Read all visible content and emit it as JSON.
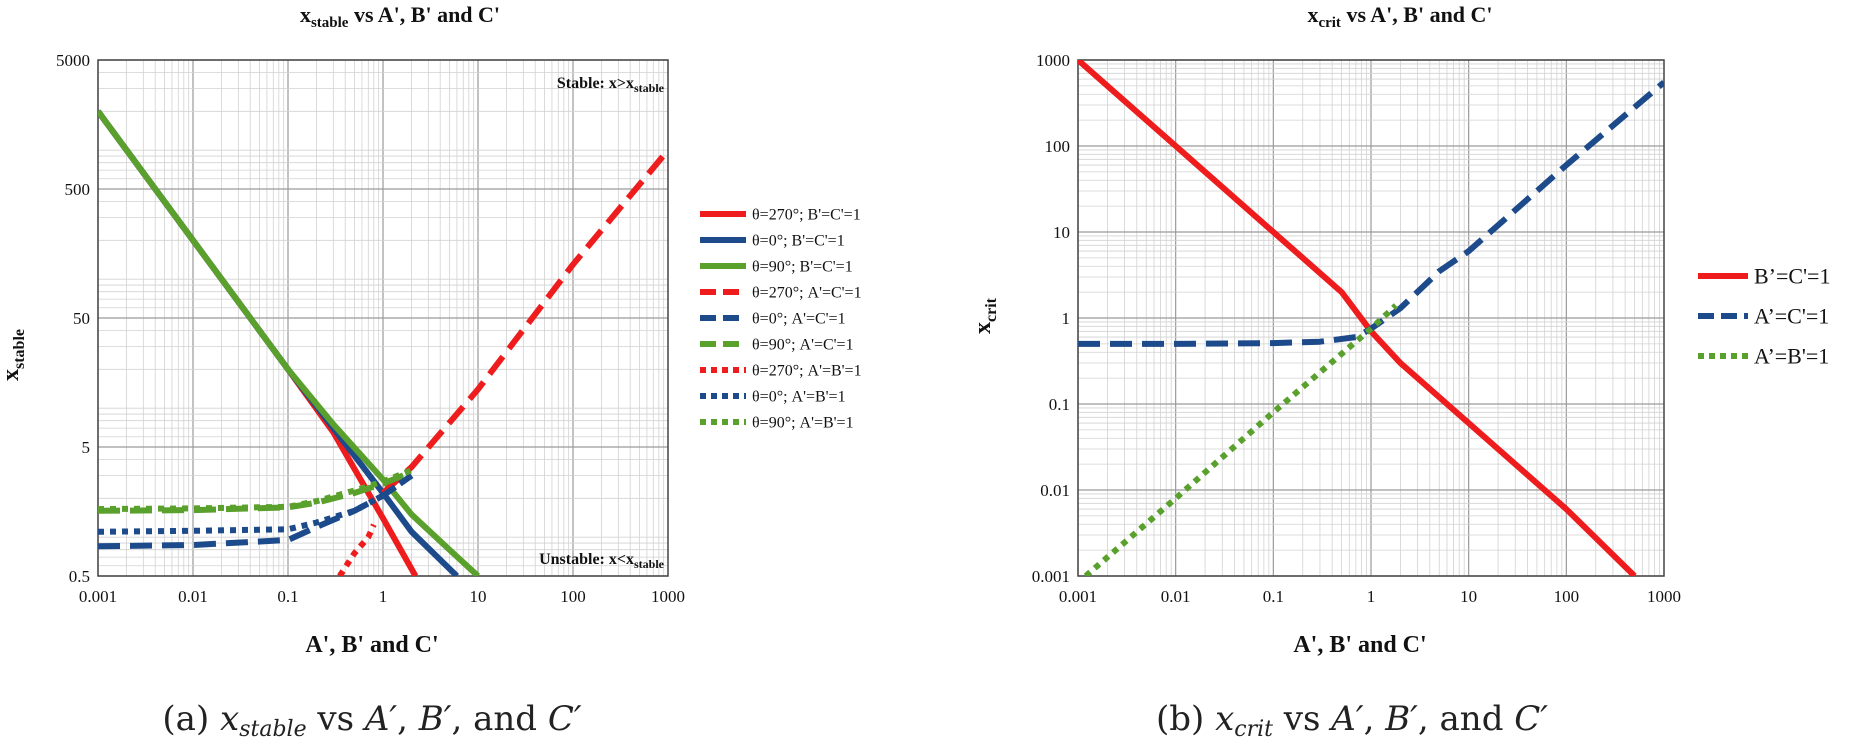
{
  "charts": [
    {
      "id": "a",
      "title_main": "x",
      "title_sub": "stable",
      "title_rest": " vs A', B' and C'",
      "ylabel_main": "x",
      "ylabel_sub": "stable",
      "xlabel": "A', B' and C'",
      "x_ticks": [
        "0.001",
        "0.01",
        "0.1",
        "1",
        "10",
        "100",
        "1000"
      ],
      "y_ticks": [
        "0.5",
        "5",
        "50",
        "500",
        "5000"
      ],
      "annotation_top_main": "Stable: x>x",
      "annotation_top_sub": "stable",
      "annotation_bottom_main": "Unstable: x<x",
      "annotation_bottom_sub": "stable",
      "caption": "(a) x_stable vs A′, B′, and C′"
    },
    {
      "id": "b",
      "title_main": "x",
      "title_sub": "crit",
      "title_rest": " vs A', B' and C'",
      "ylabel_main": "x",
      "ylabel_sub": "crit",
      "xlabel": "A', B' and C'",
      "x_ticks": [
        "0.001",
        "0.01",
        "0.1",
        "1",
        "10",
        "100",
        "1000"
      ],
      "y_ticks": [
        "0.001",
        "0.01",
        "0.1",
        "1",
        "10",
        "100",
        "1000"
      ],
      "caption": "(b) x_crit vs A′, B′, and C′"
    }
  ],
  "chart_data": [
    {
      "type": "line",
      "title": "xstable vs A', B' and C'",
      "xlabel": "A', B' and C'",
      "ylabel": "xstable",
      "x_scale": "log",
      "y_scale": "log",
      "xlim": [
        0.001,
        1000
      ],
      "ylim": [
        0.5,
        5000
      ],
      "grid": true,
      "legend_position": "right",
      "series": [
        {
          "name": "θ=270°; B'=C'=1",
          "color": "#ee1c1c",
          "style": "solid",
          "x": [
            0.001,
            0.01,
            0.1,
            0.3,
            1,
            2.2
          ],
          "y": [
            2000,
            200,
            20,
            6.5,
            1.4,
            0.5
          ]
        },
        {
          "name": "θ=0°; B'=C'=1",
          "color": "#1c4a8a",
          "style": "solid",
          "x": [
            0.001,
            0.01,
            0.1,
            0.3,
            1,
            2,
            6
          ],
          "y": [
            2000,
            200,
            20,
            7,
            2.2,
            1.1,
            0.5
          ]
        },
        {
          "name": "θ=90°; B'=C'=1",
          "color": "#5aa02c",
          "style": "solid",
          "x": [
            0.001,
            0.01,
            0.1,
            0.3,
            1,
            2,
            5,
            10
          ],
          "y": [
            2000,
            200,
            20,
            7.5,
            2.8,
            1.5,
            0.8,
            0.5
          ]
        },
        {
          "name": "θ=270°; A'=C'=1",
          "color": "#ee1c1c",
          "style": "dash",
          "x": [
            1,
            2,
            10,
            100,
            1000
          ],
          "y": [
            2.2,
            3.5,
            14,
            130,
            1000
          ]
        },
        {
          "name": "θ=0°; A'=C'=1",
          "color": "#1c4a8a",
          "style": "dash",
          "x": [
            0.001,
            0.01,
            0.1,
            0.2,
            0.5,
            1,
            2
          ],
          "y": [
            0.85,
            0.87,
            0.95,
            1.2,
            1.6,
            2.1,
            3.0
          ]
        },
        {
          "name": "θ=90°; A'=C'=1",
          "color": "#5aa02c",
          "style": "dash",
          "x": [
            0.001,
            0.01,
            0.1,
            0.2,
            0.5,
            1,
            2
          ],
          "y": [
            1.6,
            1.62,
            1.7,
            1.85,
            2.2,
            2.6,
            3.2
          ]
        },
        {
          "name": "θ=270°; A'=B'=1",
          "color": "#ee1c1c",
          "style": "dot",
          "x": [
            0.35,
            0.5,
            0.7,
            0.8
          ],
          "y": [
            0.5,
            0.75,
            1.0,
            1.25
          ]
        },
        {
          "name": "θ=0°; A'=B'=1",
          "color": "#1c4a8a",
          "style": "dot",
          "x": [
            0.001,
            0.01,
            0.1,
            0.2,
            0.5,
            1,
            2
          ],
          "y": [
            1.1,
            1.12,
            1.15,
            1.3,
            1.6,
            2.1,
            3.0
          ]
        },
        {
          "name": "θ=90°; A'=B'=1",
          "color": "#5aa02c",
          "style": "dot",
          "x": [
            0.001,
            0.01,
            0.1,
            0.2,
            0.5,
            1,
            2
          ],
          "y": [
            1.65,
            1.67,
            1.72,
            1.9,
            2.3,
            2.7,
            3.3
          ]
        }
      ]
    },
    {
      "type": "line",
      "title": "xcrit vs A', B' and C'",
      "xlabel": "A', B' and C'",
      "ylabel": "xcrit",
      "x_scale": "log",
      "y_scale": "log",
      "xlim": [
        0.001,
        1000
      ],
      "ylim": [
        0.001,
        1000
      ],
      "grid": true,
      "legend_position": "right",
      "series": [
        {
          "name": "B’=C'=1",
          "color": "#ee1c1c",
          "style": "solid",
          "x": [
            0.001,
            0.01,
            0.1,
            0.5,
            1,
            2,
            5,
            10,
            100,
            500
          ],
          "y": [
            1000,
            100,
            10,
            2,
            0.7,
            0.3,
            0.12,
            0.06,
            0.006,
            0.001
          ]
        },
        {
          "name": "A’=C'=1",
          "color": "#1c4a8a",
          "style": "dash",
          "x": [
            0.001,
            0.01,
            0.1,
            0.3,
            0.7,
            1,
            2,
            5,
            10,
            100,
            1000
          ],
          "y": [
            0.5,
            0.5,
            0.51,
            0.53,
            0.6,
            0.75,
            1.3,
            3.5,
            6,
            60,
            550
          ]
        },
        {
          "name": "A’=B'=1",
          "color": "#5aa02c",
          "style": "dot",
          "x": [
            0.0012,
            0.01,
            0.1,
            1,
            1.8
          ],
          "y": [
            0.001,
            0.008,
            0.08,
            0.75,
            1.4
          ]
        }
      ]
    }
  ]
}
